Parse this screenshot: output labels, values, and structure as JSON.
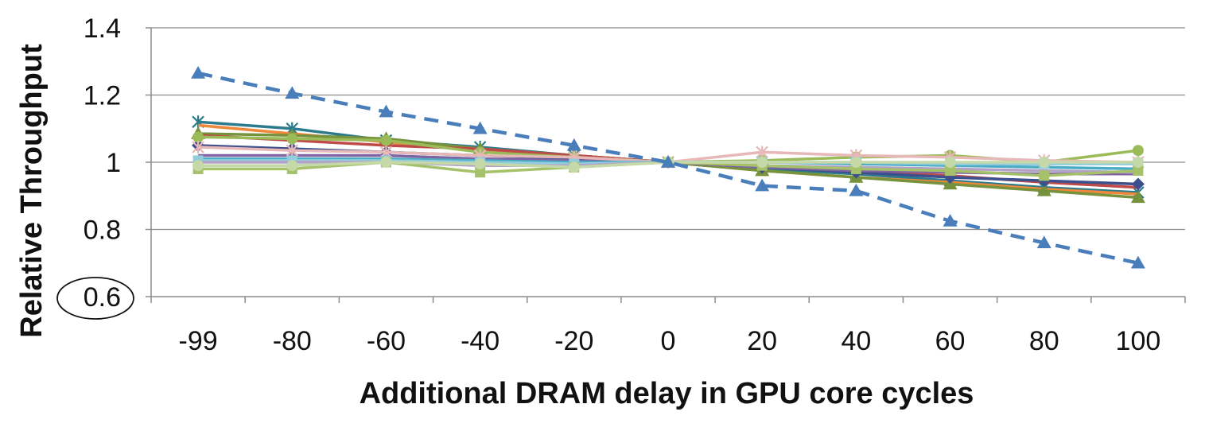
{
  "chart_data": {
    "type": "line",
    "title": "",
    "xlabel": "Additional DRAM delay in GPU core cycles",
    "ylabel": "Relative Throughput",
    "categories": [
      "-99",
      "-80",
      "-60",
      "-40",
      "-20",
      "0",
      "20",
      "40",
      "60",
      "80",
      "100"
    ],
    "ylim": [
      0.6,
      1.4
    ],
    "yticks": [
      "0.6",
      "0.8",
      "1",
      "1.2",
      "1.4"
    ],
    "grid": "horizontal",
    "highlighted_tick": "0.6",
    "series": [
      {
        "color": "#4a7ebb",
        "dash": true,
        "marker": "triangle",
        "values": [
          1.265,
          1.205,
          1.15,
          1.1,
          1.05,
          1.0,
          0.93,
          0.915,
          0.825,
          0.76,
          0.7
        ]
      },
      {
        "color": "#2c7b8c",
        "dash": false,
        "marker": "star",
        "values": [
          1.12,
          1.1,
          1.065,
          1.045,
          1.02,
          1.0,
          0.98,
          0.965,
          0.945,
          0.925,
          0.91
        ]
      },
      {
        "color": "#f0883c",
        "dash": false,
        "marker": "none",
        "values": [
          1.11,
          1.085,
          1.06,
          1.035,
          1.02,
          1.0,
          0.975,
          0.955,
          0.94,
          0.92,
          0.905
        ]
      },
      {
        "color": "#76923c",
        "dash": false,
        "marker": "triangle",
        "values": [
          1.085,
          1.08,
          1.07,
          1.04,
          1.02,
          1.0,
          0.975,
          0.955,
          0.935,
          0.915,
          0.895
        ]
      },
      {
        "color": "#be4b48",
        "dash": false,
        "marker": "none",
        "values": [
          1.08,
          1.065,
          1.05,
          1.04,
          1.02,
          1.0,
          0.985,
          0.975,
          0.96,
          0.94,
          0.925
        ]
      },
      {
        "color": "#3d4f8c",
        "dash": false,
        "marker": "diamond",
        "values": [
          1.05,
          1.04,
          1.03,
          1.02,
          1.01,
          1.0,
          0.985,
          0.97,
          0.955,
          0.945,
          0.935
        ]
      },
      {
        "color": "#9bbb59",
        "dash": false,
        "marker": "circle",
        "values": [
          1.075,
          1.07,
          1.065,
          1.03,
          1.015,
          1.0,
          1.005,
          1.015,
          1.02,
          1.0,
          1.035
        ]
      },
      {
        "color": "#8064a2",
        "dash": false,
        "marker": "none",
        "values": [
          1.02,
          1.02,
          1.02,
          1.01,
          1.005,
          1.0,
          0.985,
          0.975,
          0.97,
          0.965,
          0.965
        ]
      },
      {
        "color": "#e6b8b7",
        "dash": false,
        "marker": "star",
        "values": [
          1.045,
          1.035,
          1.03,
          1.02,
          1.015,
          1.0,
          1.03,
          1.02,
          1.015,
          1.005,
          1.0
        ]
      },
      {
        "color": "#4bacc6",
        "dash": false,
        "marker": "none",
        "values": [
          1.01,
          1.01,
          1.01,
          1.005,
          1.0,
          1.0,
          1.0,
          0.995,
          0.99,
          0.985,
          0.98
        ]
      },
      {
        "color": "#93cddd",
        "dash": false,
        "marker": "square",
        "values": [
          1.005,
          1.005,
          1.005,
          1.0,
          0.995,
          1.0,
          1.0,
          1.0,
          0.995,
          0.995,
          0.995
        ]
      },
      {
        "color": "#b3a2c7",
        "dash": false,
        "marker": "none",
        "values": [
          1.0,
          1.0,
          1.0,
          0.99,
          0.99,
          1.0,
          0.99,
          0.985,
          0.98,
          0.975,
          0.97
        ]
      },
      {
        "color": "#a5c16a",
        "dash": false,
        "marker": "square",
        "values": [
          0.98,
          0.98,
          1.0,
          0.97,
          0.985,
          1.0,
          0.99,
          0.98,
          0.975,
          0.96,
          0.975
        ]
      },
      {
        "color": "#c5d9a8",
        "dash": false,
        "marker": "circle",
        "values": [
          0.99,
          0.99,
          1.0,
          0.995,
          0.985,
          1.0,
          1.0,
          1.0,
          1.0,
          1.0,
          1.0
        ]
      }
    ]
  }
}
